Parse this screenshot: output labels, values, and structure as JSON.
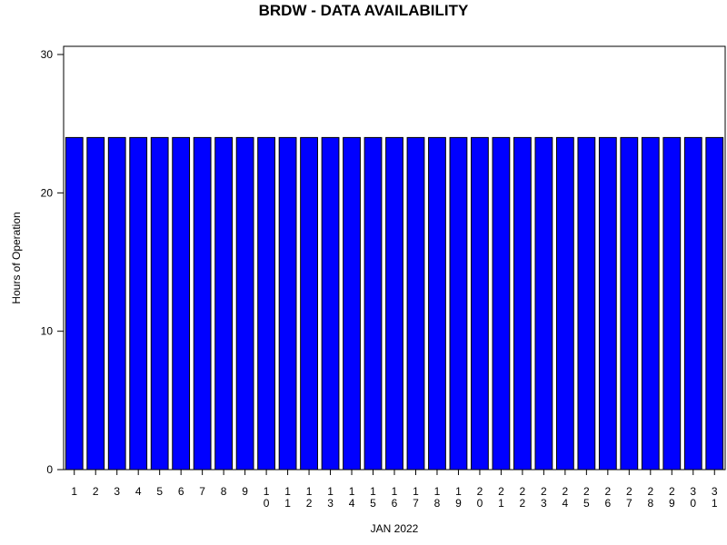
{
  "chart_data": {
    "type": "bar",
    "title": "BRDW - DATA AVAILABILITY",
    "x_label": "JAN 2022",
    "y_label": "Hours of Operation",
    "categories": [
      "1",
      "2",
      "3",
      "4",
      "5",
      "6",
      "7",
      "8",
      "9",
      "10",
      "11",
      "12",
      "13",
      "14",
      "15",
      "16",
      "17",
      "18",
      "19",
      "20",
      "21",
      "22",
      "23",
      "24",
      "25",
      "26",
      "27",
      "28",
      "29",
      "30",
      "31"
    ],
    "values": [
      24,
      24,
      24,
      24,
      24,
      24,
      24,
      24,
      24,
      24,
      24,
      24,
      24,
      24,
      24,
      24,
      24,
      24,
      24,
      24,
      24,
      24,
      24,
      24,
      24,
      24,
      24,
      24,
      24,
      24,
      24
    ],
    "color": "#0000ff",
    "ylim": [
      0,
      30
    ],
    "yticks": [
      0,
      10,
      20,
      30
    ]
  }
}
